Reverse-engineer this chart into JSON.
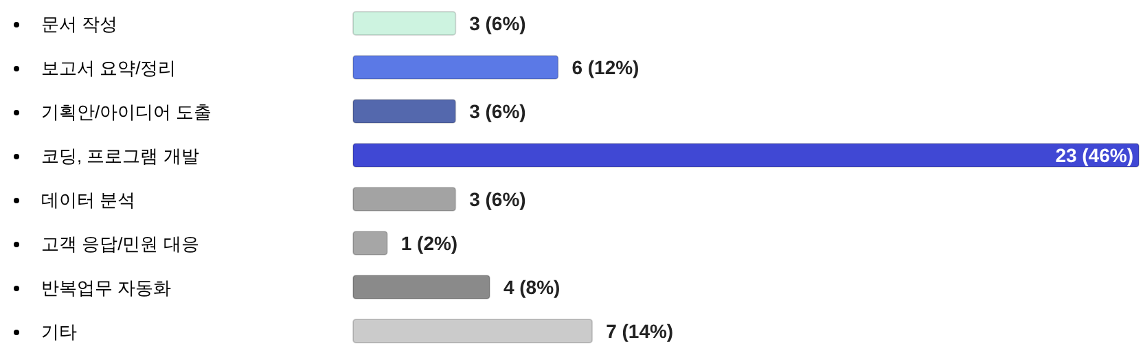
{
  "chart_data": {
    "type": "bar",
    "orientation": "horizontal",
    "categories": [
      "문서 작성",
      "보고서 요약/정리",
      "기획안/아이디어 도출",
      "코딩, 프로그램 개발",
      "데이터 분석",
      "고객 응답/민원 대응",
      "반복업무 자동화",
      "기타"
    ],
    "values": [
      3,
      6,
      3,
      23,
      3,
      1,
      4,
      7
    ],
    "colors": [
      "#cdf3e0",
      "#5b79e6",
      "#5468ad",
      "#4048d4",
      "#a3a3a3",
      "#a6a6a6",
      "#8a8a8a",
      "#cbcbcb"
    ],
    "value_labels": [
      "3 (6%)",
      "6 (12%)",
      "3 (6%)",
      "23 (46%)",
      "3 (6%)",
      "1 (2%)",
      "4 (8%)",
      "7 (14%)"
    ]
  }
}
